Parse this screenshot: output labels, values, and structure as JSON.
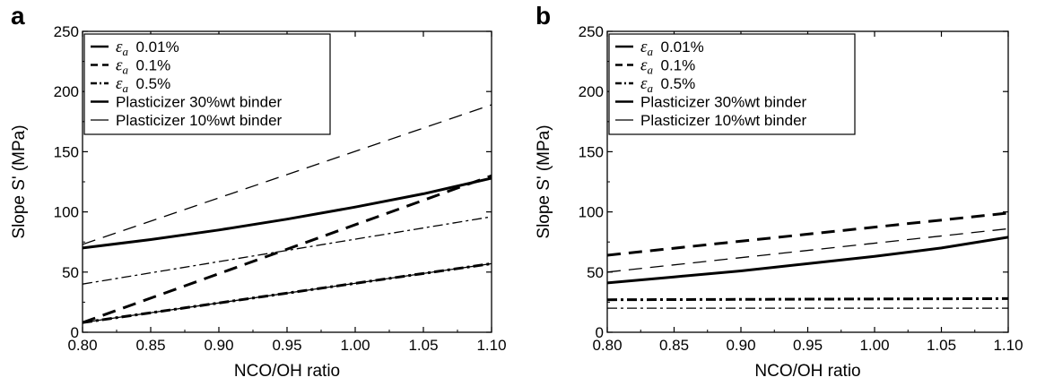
{
  "chart_data": [
    {
      "panel_label": "a",
      "type": "line",
      "xlabel": "NCO/OH ratio",
      "ylabel": "Slope S' (MPa)",
      "xlim": [
        0.8,
        1.1
      ],
      "ylim": [
        0,
        250
      ],
      "xticks": [
        "0.80",
        "0.85",
        "0.90",
        "0.95",
        "1.00",
        "1.05",
        "1.10"
      ],
      "yticks": [
        "0",
        "50",
        "100",
        "150",
        "200",
        "250"
      ],
      "grid": false,
      "legend_position": "top-left",
      "legend": [
        {
          "symbol": "ε",
          "sub": "a",
          "text": "0.01%",
          "style": "solid",
          "weight": "heavy"
        },
        {
          "symbol": "ε",
          "sub": "a",
          "text": "0.1%",
          "style": "dashed",
          "weight": "heavy"
        },
        {
          "symbol": "ε",
          "sub": "a",
          "text": "0.5%",
          "style": "dashdot",
          "weight": "heavy"
        },
        {
          "symbol": "",
          "sub": "",
          "text": "Plasticizer 30%wt binder",
          "style": "solid",
          "weight": "heavy"
        },
        {
          "symbol": "",
          "sub": "",
          "text": "Plasticizer 10%wt binder",
          "style": "solid",
          "weight": "thin"
        }
      ],
      "series": [
        {
          "binder": "30%wt",
          "strain": "0.01%",
          "style": "solid",
          "weight": "heavy",
          "x": [
            0.8,
            0.85,
            0.9,
            0.95,
            1.0,
            1.05,
            1.1
          ],
          "y": [
            70,
            77,
            85,
            94,
            104,
            115,
            128
          ]
        },
        {
          "binder": "30%wt",
          "strain": "0.1%",
          "style": "dashed",
          "weight": "heavy",
          "x": [
            0.8,
            1.1
          ],
          "y": [
            8,
            130
          ]
        },
        {
          "binder": "30%wt",
          "strain": "0.5%",
          "style": "dashdot",
          "weight": "heavy",
          "x": [
            0.8,
            1.1
          ],
          "y": [
            8,
            57
          ]
        },
        {
          "binder": "10%wt",
          "strain": "0.1%",
          "style": "dashed",
          "weight": "thin",
          "x": [
            0.8,
            1.1
          ],
          "y": [
            73,
            189
          ]
        },
        {
          "binder": "10%wt",
          "strain": "0.5%",
          "style": "dashdot",
          "weight": "thin",
          "x": [
            0.8,
            1.1
          ],
          "y": [
            40,
            96
          ]
        },
        {
          "binder": "10%wt",
          "strain": "0.01%",
          "style": "solid",
          "weight": "thin",
          "x": [
            0.8,
            1.1
          ],
          "y": [
            8,
            57
          ]
        }
      ]
    },
    {
      "panel_label": "b",
      "type": "line",
      "xlabel": "NCO/OH ratio",
      "ylabel": "Slope S' (MPa)",
      "xlim": [
        0.8,
        1.1
      ],
      "ylim": [
        0,
        250
      ],
      "xticks": [
        "0.80",
        "0.85",
        "0.90",
        "0.95",
        "1.00",
        "1.05",
        "1.10"
      ],
      "yticks": [
        "0",
        "50",
        "100",
        "150",
        "200",
        "250"
      ],
      "grid": false,
      "legend_position": "top-left",
      "legend": [
        {
          "symbol": "ε",
          "sub": "a",
          "text": "0.01%",
          "style": "solid",
          "weight": "heavy"
        },
        {
          "symbol": "ε",
          "sub": "a",
          "text": "0.1%",
          "style": "dashed",
          "weight": "heavy"
        },
        {
          "symbol": "ε",
          "sub": "a",
          "text": "0.5%",
          "style": "dashdot",
          "weight": "heavy"
        },
        {
          "symbol": "",
          "sub": "",
          "text": "Plasticizer 30%wt binder",
          "style": "solid",
          "weight": "heavy"
        },
        {
          "symbol": "",
          "sub": "",
          "text": "Plasticizer 10%wt binder",
          "style": "solid",
          "weight": "thin"
        }
      ],
      "series": [
        {
          "binder": "30%wt",
          "strain": "0.1%",
          "style": "dashed",
          "weight": "heavy",
          "x": [
            0.8,
            1.1
          ],
          "y": [
            64,
            99
          ]
        },
        {
          "binder": "10%wt",
          "strain": "0.1%",
          "style": "dashed",
          "weight": "thin",
          "x": [
            0.8,
            1.1
          ],
          "y": [
            50,
            86
          ]
        },
        {
          "binder": "30%wt",
          "strain": "0.01%",
          "style": "solid",
          "weight": "heavy",
          "x": [
            0.8,
            0.85,
            0.9,
            0.95,
            1.0,
            1.05,
            1.1
          ],
          "y": [
            41,
            46,
            51,
            57,
            63,
            70,
            79
          ]
        },
        {
          "binder": "30%wt",
          "strain": "0.5%",
          "style": "dashdot",
          "weight": "heavy",
          "x": [
            0.8,
            1.1
          ],
          "y": [
            27,
            28
          ]
        },
        {
          "binder": "10%wt",
          "strain": "0.5%",
          "style": "dashdot",
          "weight": "thin",
          "x": [
            0.8,
            1.1
          ],
          "y": [
            20,
            20
          ]
        }
      ]
    }
  ]
}
